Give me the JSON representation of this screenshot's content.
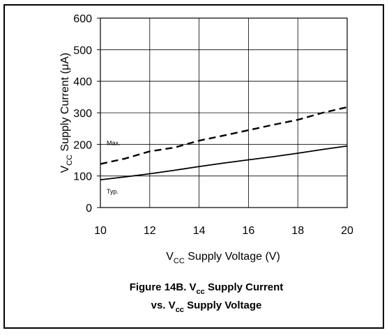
{
  "chart_data": {
    "type": "line",
    "xlabel": {
      "prefix": "V",
      "sub": "CC",
      "rest": " Supply Voltage (V)"
    },
    "ylabel": {
      "prefix": "V",
      "sub": "CC",
      "rest": " Supply Current (",
      "symbol": "μ",
      "end": "A)"
    },
    "x_ticks": [
      "10",
      "12",
      "14",
      "16",
      "18",
      "20"
    ],
    "y_ticks": [
      "0",
      "100",
      "200",
      "300",
      "400",
      "500",
      "600"
    ],
    "xlim": [
      10,
      20
    ],
    "ylim": [
      0,
      600
    ],
    "grid": true,
    "series": [
      {
        "name": "Max.",
        "style": "dashed",
        "x": [
          10,
          11,
          12,
          13,
          14,
          15,
          16,
          17,
          18,
          19,
          20
        ],
        "y": [
          138,
          155,
          178,
          190,
          212,
          228,
          245,
          262,
          278,
          300,
          318
        ]
      },
      {
        "name": "Typ.",
        "style": "solid",
        "x": [
          10,
          11,
          12,
          13,
          14,
          15,
          16,
          17,
          18,
          19,
          20
        ],
        "y": [
          88,
          97,
          107,
          118,
          130,
          141,
          151,
          161,
          172,
          184,
          195
        ]
      }
    ],
    "caption": {
      "line1_prefix": "Figure 14B. V",
      "line1_sub": "cc",
      "line1_rest": " Supply Current",
      "line2_prefix": "vs. V",
      "line2_sub": "cc",
      "line2_rest": " Supply Voltage"
    }
  }
}
